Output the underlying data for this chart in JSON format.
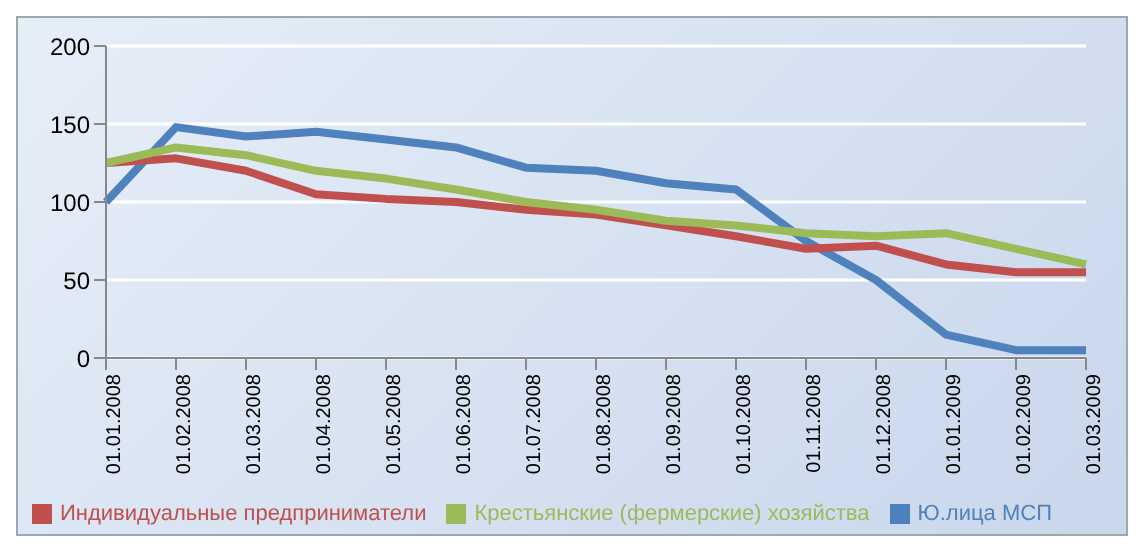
{
  "chart_data": {
    "type": "line",
    "categories": [
      "01.01.2008",
      "01.02.2008",
      "01.03.2008",
      "01.04.2008",
      "01.05.2008",
      "01.06.2008",
      "01.07.2008",
      "01.08.2008",
      "01.09.2008",
      "01.10.2008",
      "01.11.2008",
      "01.12.2008",
      "01.01.2009",
      "01.02.2009",
      "01.03.2009"
    ],
    "series": [
      {
        "name": "Ю.лица МСП",
        "color": "#4f81bd",
        "values": [
          100,
          148,
          142,
          145,
          140,
          135,
          122,
          120,
          112,
          108,
          75,
          50,
          15,
          5,
          5
        ]
      },
      {
        "name": "Индивидуальные предприниматели",
        "color": "#c0504d",
        "values": [
          125,
          128,
          120,
          105,
          102,
          100,
          95,
          92,
          85,
          78,
          70,
          72,
          60,
          55,
          55
        ]
      },
      {
        "name": "Крестьянские (фермерские) хозяйства",
        "color": "#9bbb59",
        "values": [
          125,
          135,
          130,
          120,
          115,
          108,
          100,
          95,
          88,
          85,
          80,
          78,
          80,
          70,
          60
        ]
      }
    ],
    "ylim": [
      0,
      200
    ],
    "yticks": [
      0,
      50,
      100,
      150,
      200
    ],
    "grid": "y",
    "legend": "bottom",
    "marker": "none",
    "line_style": "solid"
  }
}
